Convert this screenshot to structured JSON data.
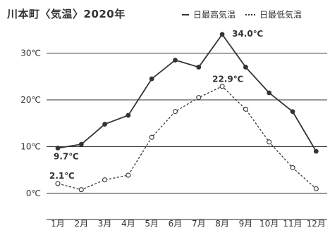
{
  "chart_data": {
    "type": "line",
    "title": "川本町〈気温〉2020年",
    "categories": [
      "1月",
      "2月",
      "3月",
      "4月",
      "5月",
      "6月",
      "7月",
      "8月",
      "9月",
      "10月",
      "11月",
      "12月"
    ],
    "series": [
      {
        "name": "日最高気温",
        "style": "solid",
        "marker": "filled-circle",
        "values": [
          9.7,
          10.5,
          14.8,
          16.7,
          24.5,
          28.5,
          27.0,
          34.0,
          27.0,
          21.5,
          17.5,
          9.0
        ]
      },
      {
        "name": "日最低気温",
        "style": "dotted",
        "marker": "open-circle",
        "values": [
          2.1,
          0.8,
          2.9,
          3.9,
          12.0,
          17.5,
          20.5,
          22.9,
          18.0,
          11.0,
          5.5,
          1.0
        ]
      }
    ],
    "yticks": [
      0,
      10,
      20,
      30
    ],
    "ytick_labels": [
      "0℃",
      "10℃",
      "20℃",
      "30℃"
    ],
    "ylim": [
      -5,
      37
    ],
    "grid": true,
    "legend_position": "top-right",
    "annotations": [
      {
        "text": "34.0℃",
        "series": 0,
        "index": 7
      },
      {
        "text": "9.7℃",
        "series": 0,
        "index": 0
      },
      {
        "text": "22.9℃",
        "series": 1,
        "index": 7
      },
      {
        "text": "2.1℃",
        "series": 1,
        "index": 0
      }
    ],
    "colors": {
      "line": "#333333",
      "grid": "#333333",
      "marker_open_fill": "#ffffff"
    }
  }
}
